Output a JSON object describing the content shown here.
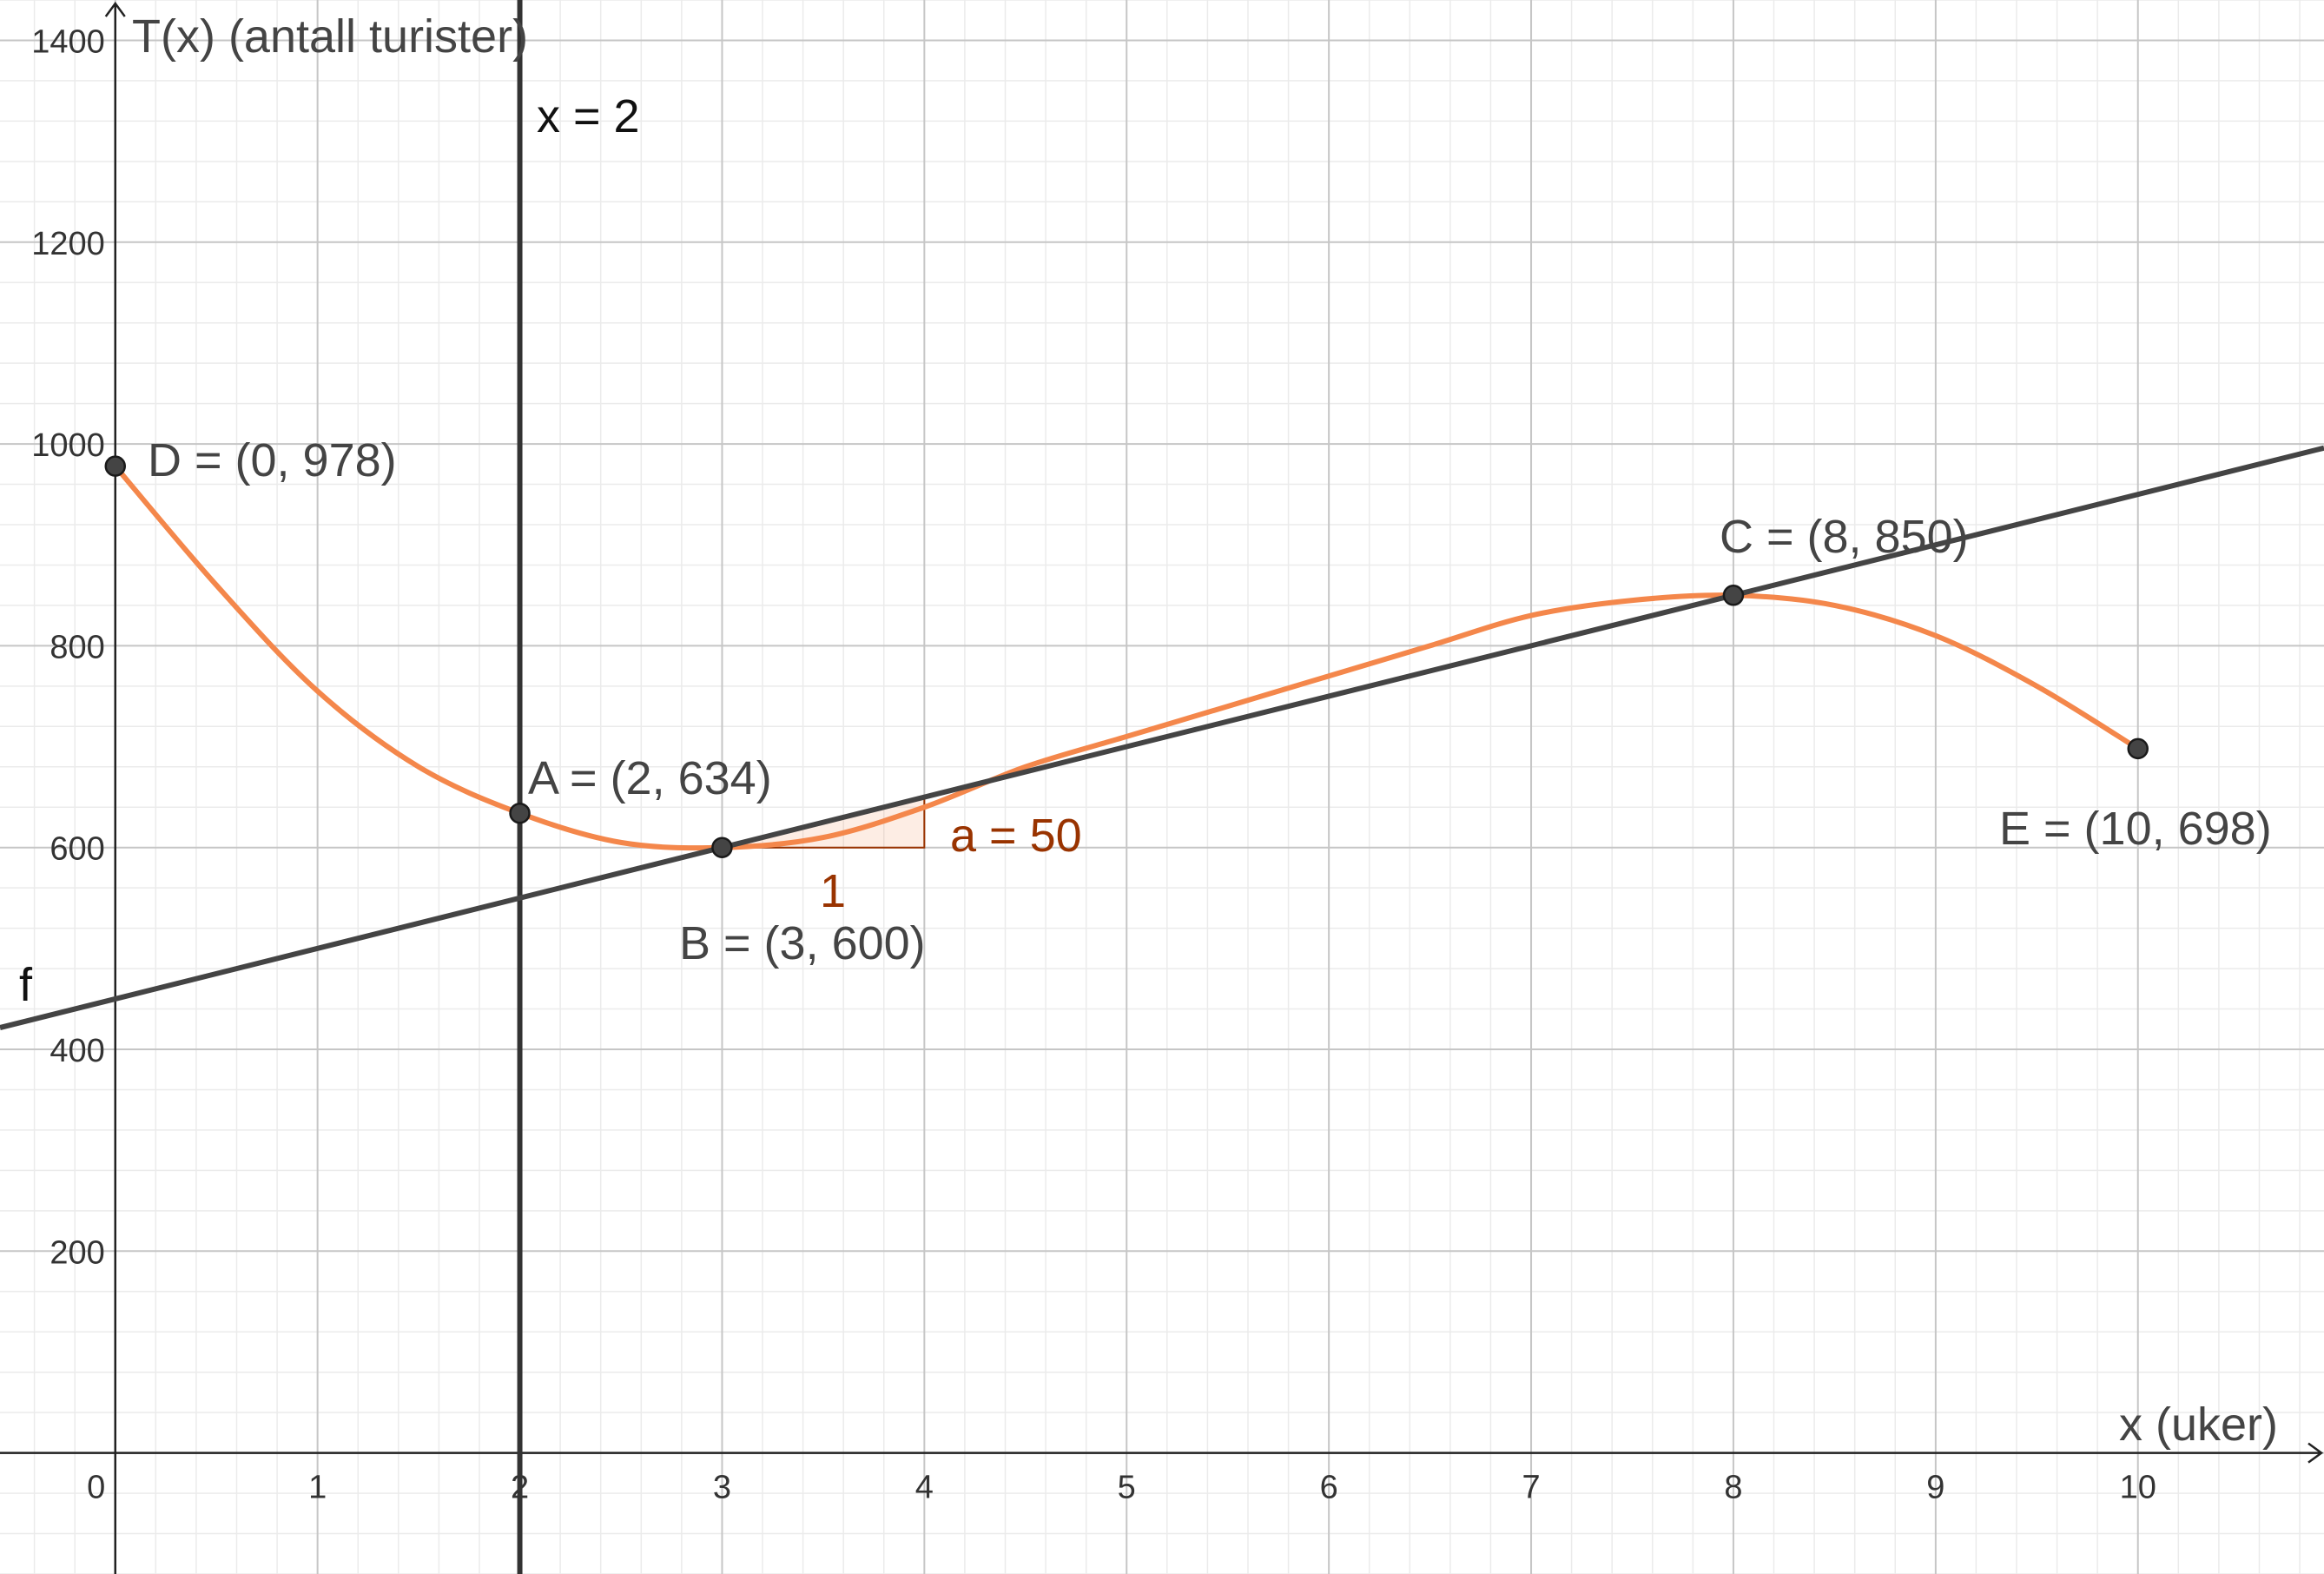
{
  "chart_data": {
    "type": "line",
    "xlabel": "x (uker)",
    "ylabel": "T(x) (antall turister)",
    "xlim": [
      -0.57,
      10.92
    ],
    "ylim": [
      -120,
      1440
    ],
    "x_ticks": [
      0,
      1,
      2,
      3,
      4,
      5,
      6,
      7,
      8,
      9,
      10
    ],
    "y_ticks": [
      200,
      400,
      600,
      800,
      1000,
      1200,
      1400
    ],
    "x_tick_labels": [
      "0",
      "1",
      "2",
      "3",
      "4",
      "5",
      "6",
      "7",
      "8",
      "9",
      "10"
    ],
    "y_tick_labels": [
      "200",
      "400",
      "600",
      "800",
      "1000",
      "1200",
      "1400"
    ],
    "grid": true,
    "colors": {
      "curve": "#f4874b",
      "line": "#444444",
      "vline": "#333333",
      "slope": "#993300",
      "point": "#444444"
    },
    "curve": {
      "name": "T(x)",
      "x": [
        0,
        0.5,
        1,
        1.5,
        2,
        2.5,
        3,
        3.5,
        4,
        4.5,
        5,
        5.5,
        6,
        6.5,
        7,
        7.5,
        8,
        8.5,
        9,
        9.5,
        10
      ],
      "y": [
        978,
        860,
        755,
        680,
        634,
        605,
        600,
        610,
        640,
        680,
        710,
        740,
        770,
        800,
        830,
        845,
        850,
        840,
        810,
        760,
        698
      ]
    },
    "line_f": {
      "label": "f",
      "slope": 50,
      "intercept": 450,
      "x_range": [
        -0.57,
        10.92
      ]
    },
    "vertical_line": {
      "x": 2,
      "label": "x = 2"
    },
    "slope_triangle": {
      "x0": 3,
      "y0": 600,
      "run": 1,
      "rise": 50,
      "run_label": "1",
      "rise_label": "a = 50"
    },
    "points": [
      {
        "name": "A",
        "x": 2,
        "y": 634,
        "label": "A = (2, 634)"
      },
      {
        "name": "B",
        "x": 3,
        "y": 600,
        "label": "B = (3, 600)"
      },
      {
        "name": "C",
        "x": 8,
        "y": 850,
        "label": "C = (8, 850)"
      },
      {
        "name": "D",
        "x": 0,
        "y": 978,
        "label": "D = (0, 978)"
      },
      {
        "name": "E",
        "x": 10,
        "y": 698,
        "label": "E = (10, 698)"
      }
    ]
  }
}
